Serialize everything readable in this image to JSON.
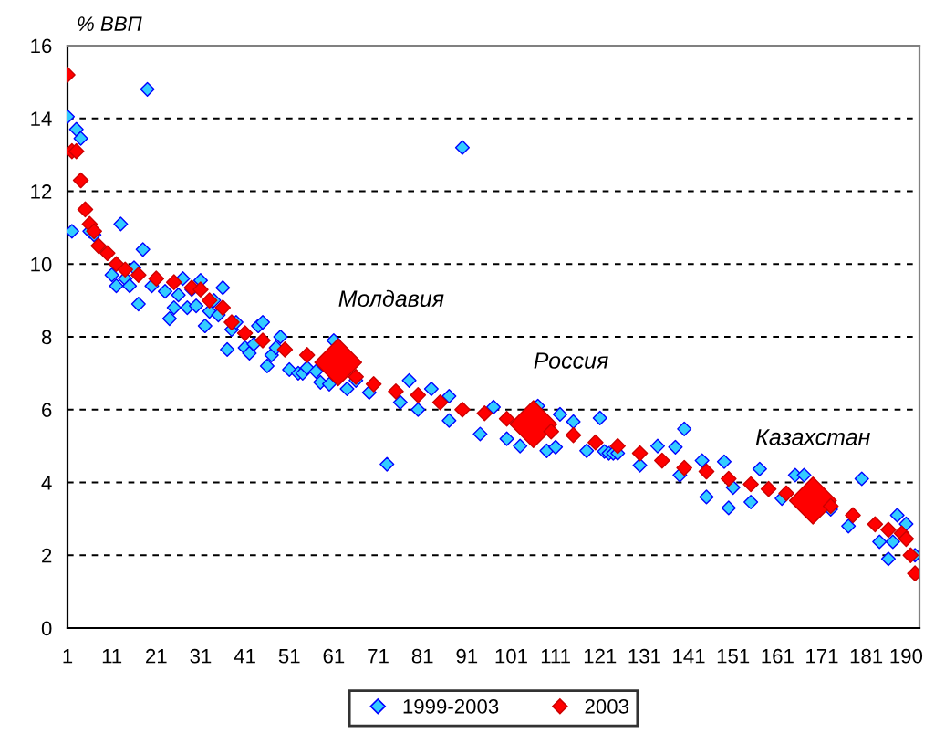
{
  "chart_data": {
    "type": "scatter",
    "ylabel": "% ВВП",
    "xlim": [
      1,
      193
    ],
    "xticks": [
      1,
      11,
      21,
      31,
      41,
      51,
      61,
      71,
      81,
      91,
      101,
      111,
      121,
      131,
      141,
      151,
      161,
      171,
      181,
      190
    ],
    "ylim": [
      0,
      16
    ],
    "yticks": [
      0,
      2,
      4,
      6,
      8,
      10,
      12,
      14,
      16
    ],
    "grid": "y",
    "legend": "bottom",
    "marker": "diamond",
    "series": [
      {
        "name": "1999-2003",
        "color": "#33ccff",
        "x": [
          1,
          2,
          3,
          4,
          6,
          7,
          11,
          12,
          13,
          14,
          15,
          16,
          17,
          18,
          19,
          20,
          23,
          24,
          25,
          26,
          27,
          28,
          29,
          30,
          31,
          32,
          33,
          34,
          35,
          36,
          37,
          38,
          39,
          41,
          42,
          43,
          44,
          45,
          46,
          47,
          48,
          49,
          51,
          53,
          54,
          55,
          57,
          58,
          60,
          61,
          64,
          66,
          69,
          73,
          76,
          78,
          80,
          83,
          87,
          87,
          90,
          94,
          97,
          100,
          103,
          107,
          109,
          111,
          112,
          115,
          118,
          121,
          122,
          123,
          124,
          125,
          130,
          134,
          138,
          139,
          140,
          144,
          145,
          149,
          150,
          151,
          155,
          157,
          162,
          165,
          167,
          173,
          177,
          180,
          184,
          186,
          187,
          188,
          190,
          192
        ],
        "values": [
          14.05,
          10.9,
          13.7,
          13.45,
          10.9,
          10.8,
          9.7,
          9.4,
          11.1,
          9.6,
          9.4,
          9.9,
          8.9,
          10.4,
          14.8,
          9.4,
          9.25,
          8.5,
          8.8,
          9.15,
          9.6,
          8.8,
          9.3,
          8.85,
          9.55,
          8.3,
          8.7,
          9.0,
          8.6,
          9.35,
          7.65,
          8.2,
          8.4,
          7.7,
          7.55,
          7.8,
          8.3,
          8.4,
          7.2,
          7.5,
          7.7,
          8.0,
          7.1,
          7.0,
          7.0,
          7.15,
          7.05,
          6.75,
          6.7,
          7.9,
          6.57,
          6.8,
          6.47,
          4.5,
          6.2,
          6.8,
          6.0,
          6.57,
          6.37,
          5.7,
          13.2,
          5.33,
          6.07,
          5.2,
          5.0,
          6.1,
          4.87,
          4.97,
          5.87,
          5.67,
          4.87,
          5.77,
          4.85,
          4.8,
          4.8,
          4.8,
          4.47,
          5.0,
          4.97,
          4.2,
          5.47,
          4.6,
          3.6,
          4.57,
          3.3,
          3.86,
          3.46,
          4.37,
          3.56,
          4.2,
          4.2,
          3.26,
          2.8,
          4.1,
          2.37,
          1.9,
          2.37,
          3.1,
          2.86,
          2.0
        ]
      },
      {
        "name": "2003",
        "color": "#ff0000",
        "sizes": [
          0.1,
          0.1,
          0.1,
          0.1,
          0.1,
          0.1,
          0.1,
          0.1,
          0.1,
          0.1,
          0.1,
          0.1,
          0.1,
          0.1,
          0.1,
          0.1,
          0.1,
          0.1,
          0.1,
          0.1,
          0.1,
          0.1,
          0.1,
          1,
          0.1,
          0.1,
          0.1,
          0.1,
          0.1,
          0.1,
          0.1,
          0.1,
          1,
          0.1,
          0.1,
          0.1,
          0.1,
          0.1,
          0.1,
          0.1,
          0.1,
          0.1,
          0.1,
          0.1,
          0.1,
          1,
          0.1,
          0.1,
          0.1,
          0.1,
          0.1,
          0.1,
          0.1,
          0.1
        ],
        "x": [
          1,
          2,
          3,
          4,
          5,
          6,
          7,
          8,
          10,
          12,
          14,
          17,
          21,
          25,
          29,
          31,
          33,
          36,
          38,
          41,
          45,
          50,
          55,
          62,
          66,
          70,
          75,
          80,
          85,
          90,
          95,
          100,
          106,
          110,
          115,
          120,
          125,
          130,
          135,
          140,
          145,
          150,
          155,
          159,
          163,
          169,
          173,
          178,
          183,
          186,
          189,
          190,
          191,
          192
        ],
        "values": [
          15.2,
          13.1,
          13.1,
          12.3,
          11.5,
          11.1,
          10.9,
          10.5,
          10.3,
          10.0,
          9.85,
          9.7,
          9.6,
          9.5,
          9.35,
          9.3,
          9.0,
          8.8,
          8.4,
          8.1,
          7.9,
          7.65,
          7.5,
          7.3,
          6.9,
          6.7,
          6.5,
          6.4,
          6.2,
          6.0,
          5.9,
          5.75,
          5.6,
          5.4,
          5.3,
          5.1,
          5.0,
          4.8,
          4.6,
          4.4,
          4.3,
          4.1,
          3.95,
          3.82,
          3.7,
          3.5,
          3.35,
          3.1,
          2.85,
          2.7,
          2.6,
          2.45,
          2.0,
          1.5
        ]
      }
    ],
    "annotations": [
      {
        "text": "Молдавия",
        "x": 62,
        "y": 7.3
      },
      {
        "text": "Россия",
        "x": 106,
        "y": 5.6
      },
      {
        "text": "Казахстан",
        "x": 169,
        "y": 3.5
      }
    ]
  }
}
